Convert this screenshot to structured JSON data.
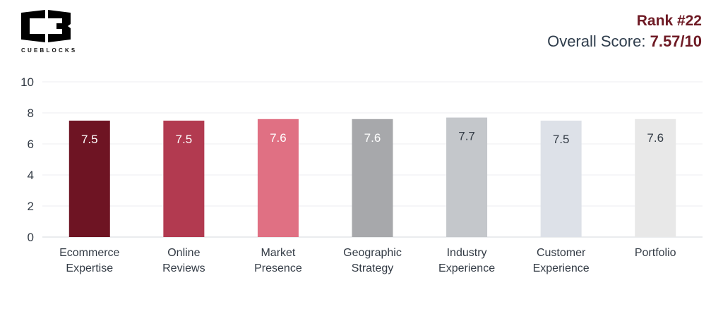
{
  "logo": {
    "text": "CUEBLOCKS",
    "letters": "CB"
  },
  "header": {
    "rank": "Rank #22",
    "score_label": "Overall Score:",
    "score_value": "7.57/10"
  },
  "colors": {
    "brand": "#6e1a24",
    "text": "#2f3d4c"
  },
  "chart_data": {
    "type": "bar",
    "categories": [
      [
        "Ecommerce",
        "Expertise"
      ],
      [
        "Online",
        "Reviews"
      ],
      [
        "Market",
        "Presence"
      ],
      [
        "Geographic",
        "Strategy"
      ],
      [
        "Industry",
        "Experience"
      ],
      [
        "Customer",
        "Experience"
      ],
      [
        "Portfolio"
      ]
    ],
    "values": [
      7.5,
      7.5,
      7.6,
      7.6,
      7.7,
      7.5,
      7.6
    ],
    "data_labels": [
      "7.5",
      "7.5",
      "7.6",
      "7.6",
      "7.7",
      "7.5",
      "7.6"
    ],
    "bar_colors": [
      "#6e1423",
      "#b23a50",
      "#e07083",
      "#a7a8ab",
      "#c4c7cb",
      "#dde1e8",
      "#e8e8e8"
    ],
    "label_colors": [
      "#ffffff",
      "#ffffff",
      "#ffffff",
      "#ffffff",
      "#333b45",
      "#333b45",
      "#333b45"
    ],
    "yticks": [
      0,
      2,
      4,
      6,
      8,
      10
    ],
    "ylim": [
      0,
      10
    ],
    "grid": true,
    "title": "",
    "xlabel": "",
    "ylabel": ""
  }
}
